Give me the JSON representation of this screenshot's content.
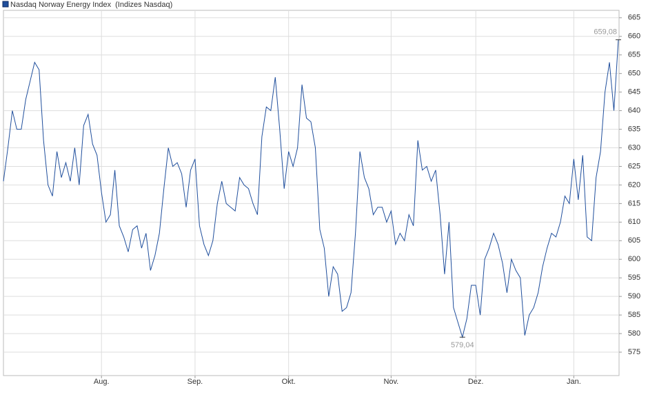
{
  "chart_data": {
    "type": "line",
    "series": [
      {
        "name": "Nasdaq Norway Energy Index",
        "color": "#1f4e9c",
        "values": [
          621,
          630,
          640,
          635,
          635,
          643,
          648,
          653,
          651,
          632,
          620,
          617,
          629,
          622,
          626,
          621,
          630,
          620,
          636,
          639,
          631,
          628,
          618,
          610,
          612,
          624,
          609,
          606,
          602,
          608,
          609,
          603,
          607,
          597,
          601,
          607,
          619,
          630,
          625,
          626,
          623,
          614,
          624,
          627,
          609,
          604,
          601,
          605,
          615,
          621,
          615,
          614,
          613,
          622,
          620,
          619,
          615,
          612,
          633,
          641,
          640,
          649,
          635,
          619,
          629,
          625,
          630,
          647,
          638,
          637,
          630,
          608,
          603,
          590,
          598,
          596,
          586,
          587,
          591,
          607,
          629,
          622,
          619,
          612,
          614,
          614,
          610,
          613,
          604,
          607,
          605,
          612,
          609,
          632,
          624,
          625,
          621,
          624,
          612,
          596,
          610,
          587,
          583,
          579.04,
          584,
          593,
          593,
          585,
          600,
          603,
          607,
          604,
          599,
          591,
          600,
          597,
          595,
          579.5,
          585,
          587,
          591,
          598,
          603,
          607,
          606,
          610,
          617,
          615,
          627,
          616,
          628,
          606,
          605,
          622,
          629,
          645,
          653,
          640,
          659.08
        ],
        "value_labels": [
          null,
          null,
          null,
          null,
          null,
          null,
          null,
          null,
          null,
          null,
          null,
          null,
          null,
          null,
          null,
          null,
          null,
          null,
          null,
          null,
          null,
          null,
          null,
          null,
          null,
          null,
          null,
          null,
          null,
          null,
          null,
          null,
          null,
          null,
          null,
          null,
          null,
          null,
          null,
          null,
          null,
          null,
          null,
          null,
          null,
          null,
          null,
          null,
          null,
          null,
          null,
          null,
          null,
          null,
          null,
          null,
          null,
          null,
          null,
          null,
          null,
          null,
          null,
          null,
          null,
          null,
          null,
          null,
          null,
          null,
          null,
          null,
          null,
          null,
          null,
          null,
          null,
          null,
          null,
          null,
          null,
          null,
          null,
          null,
          null,
          null,
          null,
          null,
          null,
          null,
          null,
          null,
          null,
          null,
          null,
          null,
          null,
          null,
          null,
          null,
          null,
          null,
          null,
          "579,04",
          null,
          null,
          null,
          null,
          null,
          null,
          null,
          null,
          null,
          null,
          null,
          null,
          null,
          null,
          null,
          null,
          null,
          null,
          null,
          null,
          null,
          null,
          null,
          null,
          null,
          null,
          null,
          null,
          null,
          null,
          null,
          null,
          null,
          null,
          "659,08"
        ]
      }
    ],
    "subtitle": "(Indizes Nasdaq)",
    "categories": [
      null,
      null,
      null,
      null,
      null,
      null,
      null,
      null,
      null,
      null,
      null,
      null,
      null,
      null,
      null,
      null,
      null,
      null,
      null,
      null,
      null,
      null,
      "Aug.",
      null,
      null,
      null,
      null,
      null,
      null,
      null,
      null,
      null,
      null,
      null,
      null,
      null,
      null,
      null,
      null,
      null,
      null,
      null,
      null,
      "Sep.",
      null,
      null,
      null,
      null,
      null,
      null,
      null,
      null,
      null,
      null,
      null,
      null,
      null,
      null,
      null,
      null,
      null,
      null,
      null,
      null,
      "Okt.",
      null,
      null,
      null,
      null,
      null,
      null,
      null,
      null,
      null,
      null,
      null,
      null,
      null,
      null,
      null,
      null,
      null,
      null,
      null,
      null,
      null,
      null,
      "Nov.",
      null,
      null,
      null,
      null,
      null,
      null,
      null,
      null,
      null,
      null,
      null,
      null,
      null,
      null,
      null,
      null,
      null,
      null,
      "Dez.",
      null,
      null,
      null,
      null,
      null,
      null,
      null,
      null,
      null,
      null,
      null,
      null,
      null,
      null,
      null,
      null,
      null,
      null,
      null,
      null,
      null,
      "Jan.",
      null,
      null,
      null,
      null,
      null,
      null,
      null,
      null,
      null,
      null
    ],
    "ylim": [
      568.7,
      667
    ],
    "yticks": [
      575,
      580,
      585,
      590,
      595,
      600,
      605,
      610,
      615,
      620,
      625,
      630,
      635,
      640,
      645,
      650,
      655,
      660,
      665
    ],
    "grid": true
  }
}
